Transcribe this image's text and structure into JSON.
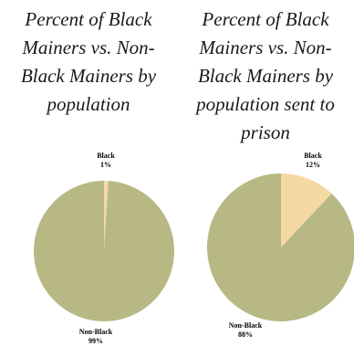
{
  "colors": {
    "non_black": "#b7b883",
    "black": "#f4d9a2",
    "background": "#ffffff"
  },
  "chart_data": [
    {
      "type": "pie",
      "title_lines": [
        "Percent of Black",
        "Mainers  vs. Non-",
        "Black Mainers by",
        "population"
      ],
      "slices": [
        {
          "label": "Black",
          "value": 1,
          "value_label": "1%",
          "color": "#f4d9a2"
        },
        {
          "label": "Non-Black",
          "value": 99,
          "value_label": "99%",
          "color": "#b7b883"
        }
      ]
    },
    {
      "type": "pie",
      "title_lines": [
        "Percent of Black",
        "Mainers  vs. Non-",
        "Black Mainers by",
        "population sent to",
        "prison"
      ],
      "slices": [
        {
          "label": "Black",
          "value": 12,
          "value_label": "12%",
          "color": "#f4d9a2"
        },
        {
          "label": "Non-Black",
          "value": 88,
          "value_label": "88%",
          "color": "#b7b883"
        }
      ]
    }
  ]
}
